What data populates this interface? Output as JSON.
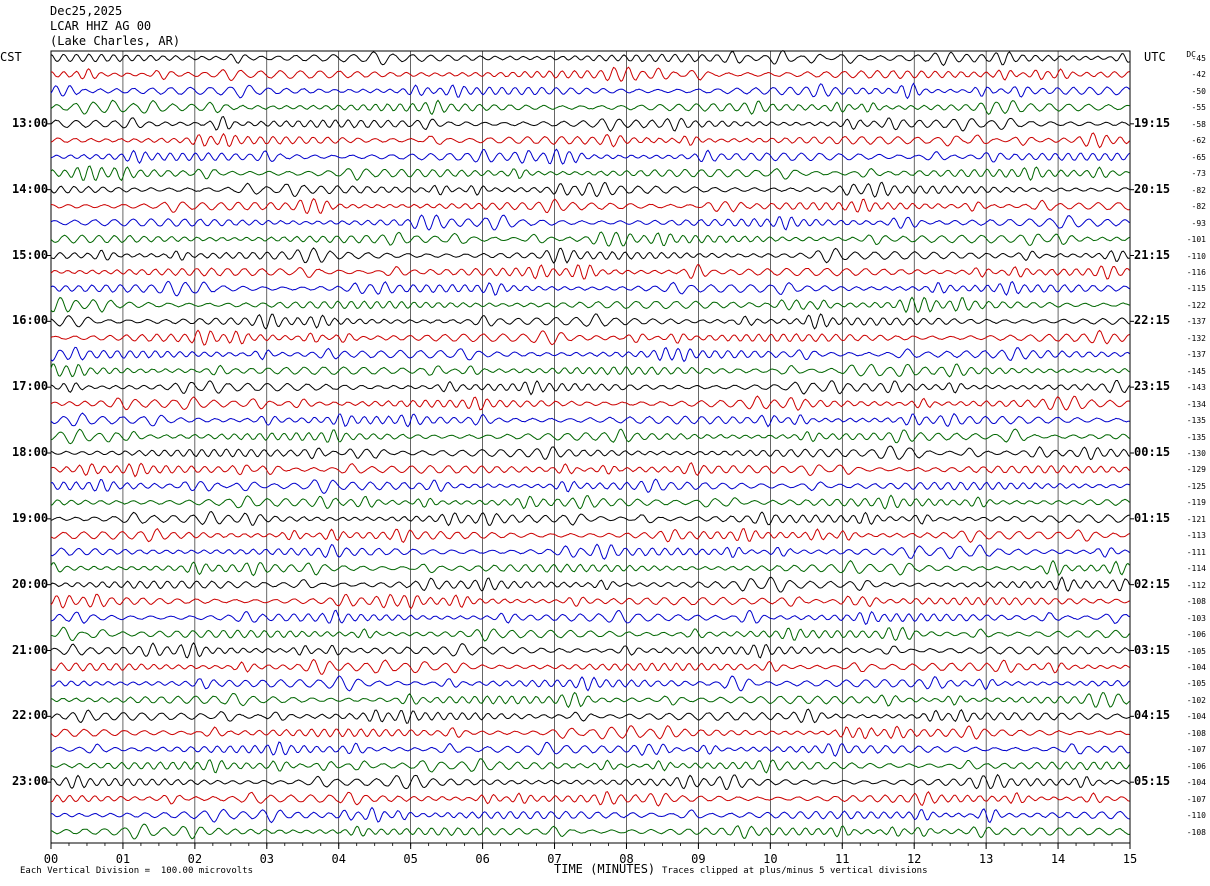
{
  "header": {
    "date": "Dec25,2025",
    "station": "LCAR HHZ AG 00",
    "location": "(Lake Charles, AR)"
  },
  "left_zone": "CST",
  "right_zone": "UTC",
  "dc_label": "DC",
  "footer": {
    "scale_text": "Each Vertical Division =  100.00 microvolts",
    "xlabel": "TIME (MINUTES)",
    "clip_text": "Traces clipped at plus/minus 5 vertical divisions"
  },
  "colors": {
    "trace_cycle": [
      "#000000",
      "#cc0000",
      "#0000cc",
      "#006600"
    ],
    "grid": "#000000"
  },
  "chart_data": {
    "type": "line",
    "title": "",
    "xlabel": "TIME (MINUTES)",
    "xlim": [
      0,
      15
    ],
    "x_ticks": [
      "00",
      "01",
      "02",
      "03",
      "04",
      "05",
      "06",
      "07",
      "08",
      "09",
      "10",
      "11",
      "12",
      "13",
      "14",
      "15"
    ],
    "left_hour_labels": [
      "13:00",
      "14:00",
      "15:00",
      "16:00",
      "17:00",
      "18:00",
      "19:00",
      "20:00",
      "21:00",
      "22:00",
      "23:00"
    ],
    "right_hour_labels": [
      "19:15",
      "20:15",
      "21:15",
      "22:15",
      "23:15",
      "00:15",
      "01:15",
      "02:15",
      "03:15",
      "04:15",
      "05:15"
    ],
    "trace_count": 48,
    "dc_offsets": [
      "-45",
      "-42",
      "-50",
      "-55",
      "-58",
      "-62",
      "-65",
      "-73",
      "-82",
      "-82",
      "-93",
      "-101",
      "-110",
      "-116",
      "-115",
      "-122",
      "-137",
      "-132",
      "-137",
      "-145",
      "-143",
      "-134",
      "-135",
      "-135",
      "-130",
      "-129",
      "-125",
      "-119",
      "-121",
      "-113",
      "-111",
      "-114",
      "-112",
      "-108",
      "-103",
      "-106",
      "-105",
      "-104",
      "-105",
      "-102",
      "-104",
      "-108",
      "-107",
      "-106",
      "-104",
      "-107",
      "-110",
      "-108"
    ]
  }
}
